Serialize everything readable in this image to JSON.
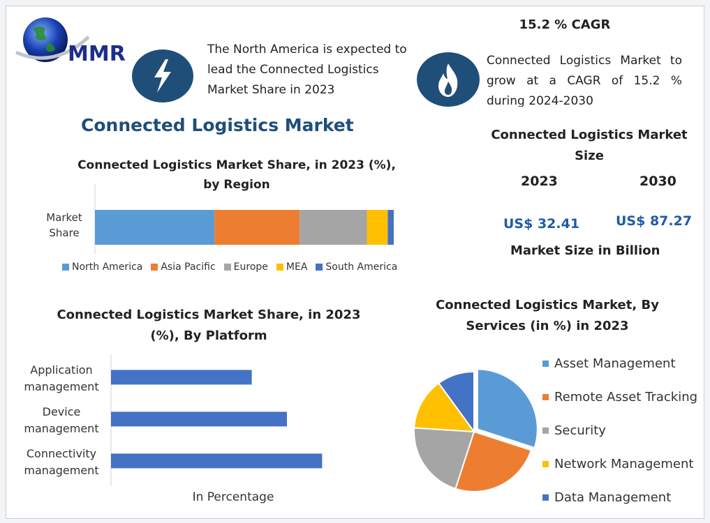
{
  "logo": {
    "text": "MMR"
  },
  "header": {
    "north_america_text": "The North America is expected to lead the Connected Logistics Market Share in 2023",
    "cagr_title": "15.2 % CAGR",
    "cagr_text": "Connected Logistics Market to grow at a CAGR of 15.2 % during 2024-2030"
  },
  "main_title": "Connected Logistics Market",
  "market_size": {
    "title": "Connected Logistics Market Size",
    "year_a": "2023",
    "year_b": "2030",
    "value_a": "US$ 32.41",
    "value_b": "US$ 87.27",
    "caption": "Market Size in Billion"
  },
  "chart_data": [
    {
      "type": "bar",
      "orientation": "horizontal-stacked",
      "title": "Connected Logistics Market Share, in 2023 (%), by Region",
      "categories": [
        "Market Share"
      ],
      "series": [
        {
          "name": "North America",
          "values": [
            40
          ],
          "color": "#5b9bd5"
        },
        {
          "name": "Asia Pacific",
          "values": [
            28.5
          ],
          "color": "#ed7d31"
        },
        {
          "name": "Europe",
          "values": [
            22.5
          ],
          "color": "#a5a5a5"
        },
        {
          "name": "MEA",
          "values": [
            7
          ],
          "color": "#ffc000"
        },
        {
          "name": "South America",
          "values": [
            2
          ],
          "color": "#4472c4"
        }
      ],
      "legend": "bottom"
    },
    {
      "type": "bar",
      "orientation": "horizontal",
      "title": "Connected Logistics Market Share, in 2023 (%), By Platform",
      "categories": [
        "Application management",
        "Device management",
        "Connectivity management"
      ],
      "category_lines": [
        [
          "Application",
          "management"
        ],
        [
          "Device",
          "management"
        ],
        [
          "Connectivity",
          "management"
        ]
      ],
      "values": [
        28,
        35,
        42
      ],
      "xlim": [
        0,
        50
      ],
      "xlabel": "In Percentage",
      "color": "#4472c4"
    },
    {
      "type": "pie",
      "title": "Connected Logistics Market, By Services (in %) in 2023",
      "labels": [
        "Asset Management",
        "Remote Asset Tracking",
        "Security",
        "Network Management",
        "Data Management"
      ],
      "values": [
        30,
        25,
        21,
        14,
        10
      ],
      "colors": [
        "#5b9bd5",
        "#ed7d31",
        "#a5a5a5",
        "#ffc000",
        "#4472c4"
      ],
      "exploded": [
        "Asset Management"
      ],
      "legend": "right"
    }
  ]
}
